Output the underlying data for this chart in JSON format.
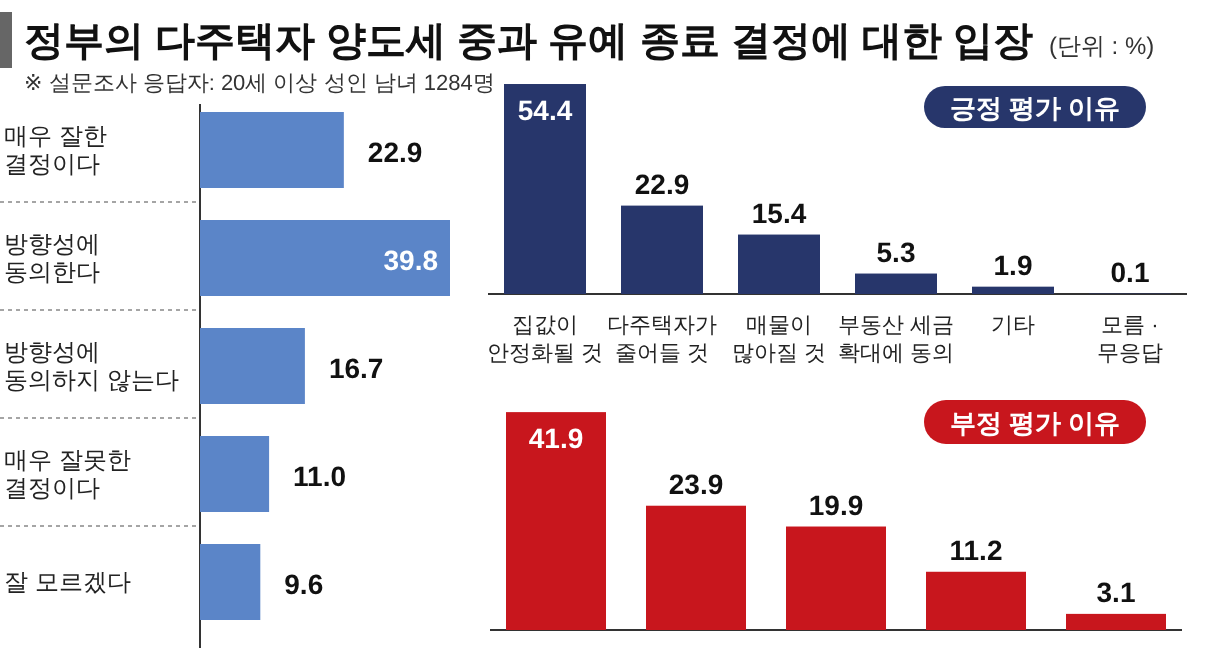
{
  "chart_data": [
    {
      "type": "bar",
      "orientation": "horizontal",
      "title": "정부의 다주택자 양도세 중과 유예 종료 결정에 대한 입장",
      "subtitle": "※ 설문조사 응답자: 20세 이상 성인 남녀 1284명",
      "annotations": [
        "(단위 : %)"
      ],
      "categories": [
        "매우 잘한\n결정이다",
        "방향성에\n동의한다",
        "방향성에\n동의하지 않는다",
        "매우 잘못한\n결정이다",
        "잘 모르겠다"
      ],
      "values": [
        22.9,
        39.8,
        16.7,
        11.0,
        9.6
      ],
      "value_labels": [
        "22.9",
        "39.8",
        "16.7",
        "11.0",
        "9.6"
      ],
      "color": "#5b85c8"
    },
    {
      "type": "bar",
      "title": "긍정 평가 이유",
      "categories": [
        "집값이\n안정화될 것",
        "다주택자가\n줄어들 것",
        "매물이\n많아질 것",
        "부동산 세금\n확대에 동의",
        "기타",
        "모름 ·\n무응답"
      ],
      "values": [
        54.4,
        22.9,
        15.4,
        5.3,
        1.9,
        0.1
      ],
      "color": "#27366b",
      "data_labels": true
    },
    {
      "type": "bar",
      "title": "부정 평가 이유",
      "categories": [
        null,
        null,
        null,
        null,
        null
      ],
      "values": [
        41.9,
        23.9,
        19.9,
        11.2,
        3.1
      ],
      "color": "#c8161d",
      "data_labels": true
    }
  ]
}
